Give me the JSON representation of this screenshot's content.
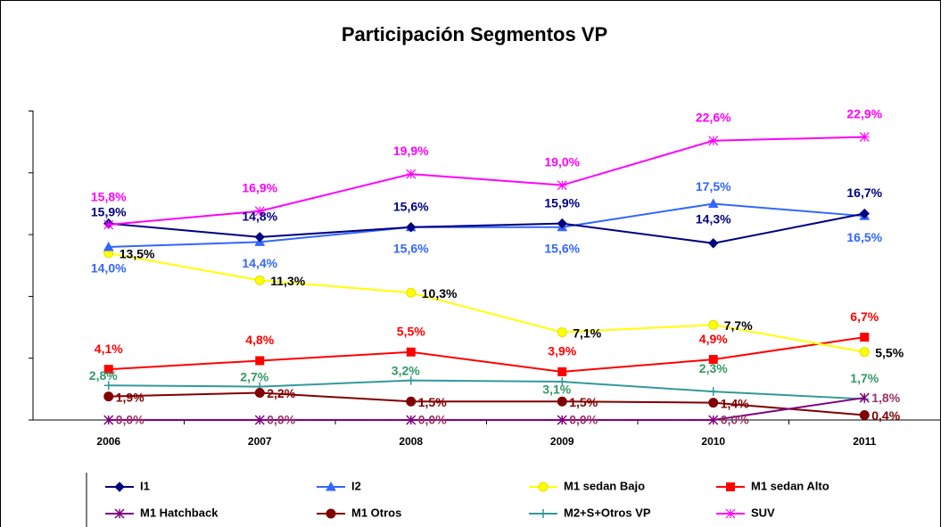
{
  "chart_data": {
    "type": "line",
    "title": "Participación Segmentos VP",
    "categories": [
      "2006",
      "2007",
      "2008",
      "2009",
      "2010",
      "2011"
    ],
    "ylim": [
      0,
      25
    ],
    "yticks": [
      0,
      5,
      10,
      15,
      20,
      25
    ],
    "series": [
      {
        "name": "I1",
        "color": "#000080",
        "label_color": "#000080",
        "marker": "diamond",
        "values": [
          15.9,
          14.8,
          15.6,
          15.9,
          14.3,
          16.7
        ],
        "value_labels": [
          "15,9%",
          "14,8%",
          "15,6%",
          "15,9%",
          "14,3%",
          "16,7%"
        ]
      },
      {
        "name": "I2",
        "color": "#3366ff",
        "label_color": "#3366ff",
        "marker": "triangle",
        "values": [
          14.0,
          14.4,
          15.6,
          15.6,
          17.5,
          16.5
        ],
        "value_labels": [
          "14,0%",
          "14,4%",
          "15,6%",
          "15,6%",
          "17,5%",
          "16,5%"
        ]
      },
      {
        "name": "M1 sedan Bajo",
        "color": "#ffff00",
        "label_color": "#000000",
        "marker": "circle",
        "values": [
          13.5,
          11.3,
          10.3,
          7.1,
          7.7,
          5.5
        ],
        "value_labels": [
          "13,5%",
          "11,3%",
          "10,3%",
          "7,1%",
          "7,7%",
          "5,5%"
        ]
      },
      {
        "name": "M1 sedan Alto",
        "color": "#ff0000",
        "label_color": "#ff0000",
        "marker": "square",
        "values": [
          4.1,
          4.8,
          5.5,
          3.9,
          4.9,
          6.7
        ],
        "value_labels": [
          "4,1%",
          "4,8%",
          "5,5%",
          "3,9%",
          "4,9%",
          "6,7%"
        ]
      },
      {
        "name": "M1 Hatchback",
        "color": "#800080",
        "label_color": "#993366",
        "marker": "star",
        "values": [
          0.0,
          0.0,
          0.0,
          0.0,
          0.0,
          1.8
        ],
        "value_labels": [
          "0,0%",
          "0,0%",
          "0,0%",
          "0,0%",
          "0,0%",
          "1,8%"
        ]
      },
      {
        "name": "M1 Otros",
        "color": "#800000",
        "label_color": "#800000",
        "marker": "circle",
        "values": [
          1.9,
          2.2,
          1.5,
          1.5,
          1.4,
          0.4
        ],
        "value_labels": [
          "1,9%",
          "2,2%",
          "1,5%",
          "1,5%",
          "1,4%",
          "0,4%"
        ]
      },
      {
        "name": "M2+S+Otros VP",
        "color": "#339999",
        "label_color": "#339966",
        "marker": "plus",
        "values": [
          2.8,
          2.7,
          3.2,
          3.1,
          2.3,
          1.7
        ],
        "value_labels": [
          "2,8%",
          "2,7%",
          "3,2%",
          "3,1%",
          "2,3%",
          "1,7%"
        ]
      },
      {
        "name": "SUV",
        "color": "#ff00ff",
        "label_color": "#ff00ff",
        "marker": "asterisk",
        "values": [
          15.8,
          16.9,
          19.9,
          19.0,
          22.6,
          22.9
        ],
        "value_labels": [
          "15,8%",
          "16,9%",
          "19,9%",
          "19,0%",
          "22,6%",
          "22,9%"
        ]
      }
    ]
  }
}
